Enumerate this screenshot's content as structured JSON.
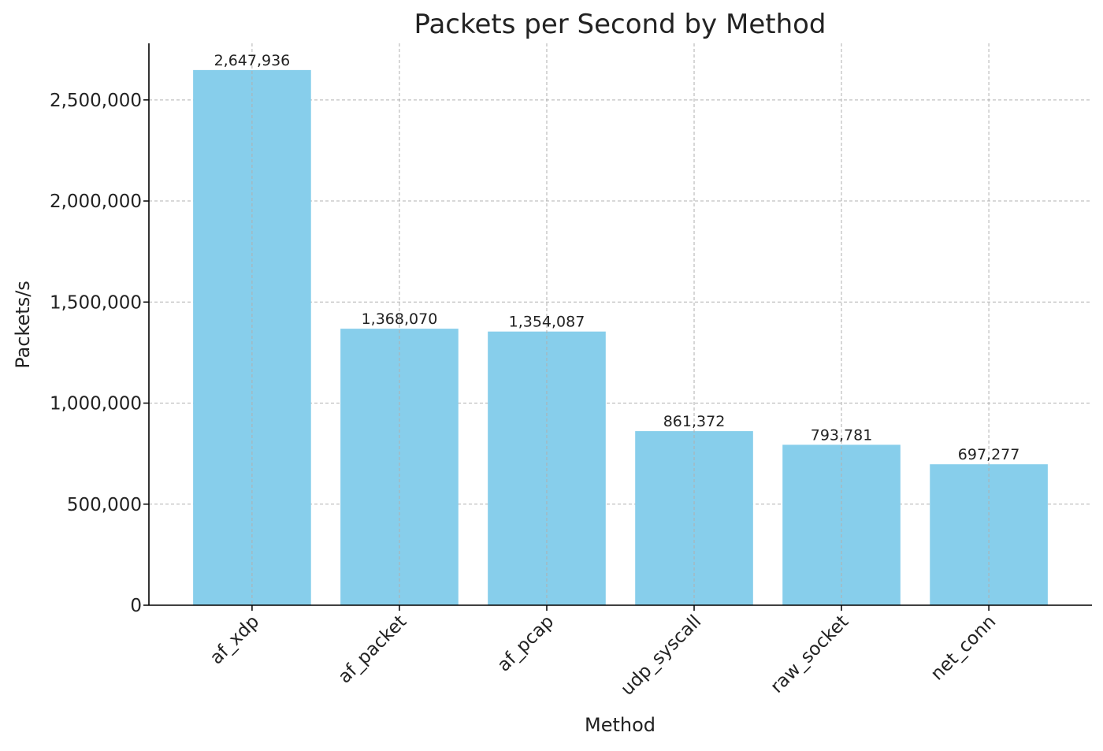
{
  "chart_data": {
    "type": "bar",
    "title": "Packets per Second by Method",
    "xlabel": "Method",
    "ylabel": "Packets/s",
    "categories": [
      "af_xdp",
      "af_packet",
      "af_pcap",
      "udp_syscall",
      "raw_socket",
      "net_conn"
    ],
    "values": [
      2647936,
      1368070,
      1354087,
      861372,
      793781,
      697277
    ],
    "value_labels": [
      "2,647,936",
      "1,368,070",
      "1,354,087",
      "861,372",
      "793,781",
      "697,277"
    ],
    "ylim": [
      0,
      2780000
    ],
    "yticks": [
      0,
      500000,
      1000000,
      1500000,
      2000000,
      2500000
    ],
    "ytick_labels": [
      "0",
      "500,000",
      "1,000,000",
      "1,500,000",
      "2,000,000",
      "2,500,000"
    ],
    "grid": true,
    "bar_color": "#87ceeb",
    "grid_color": "#b0b0b0"
  }
}
